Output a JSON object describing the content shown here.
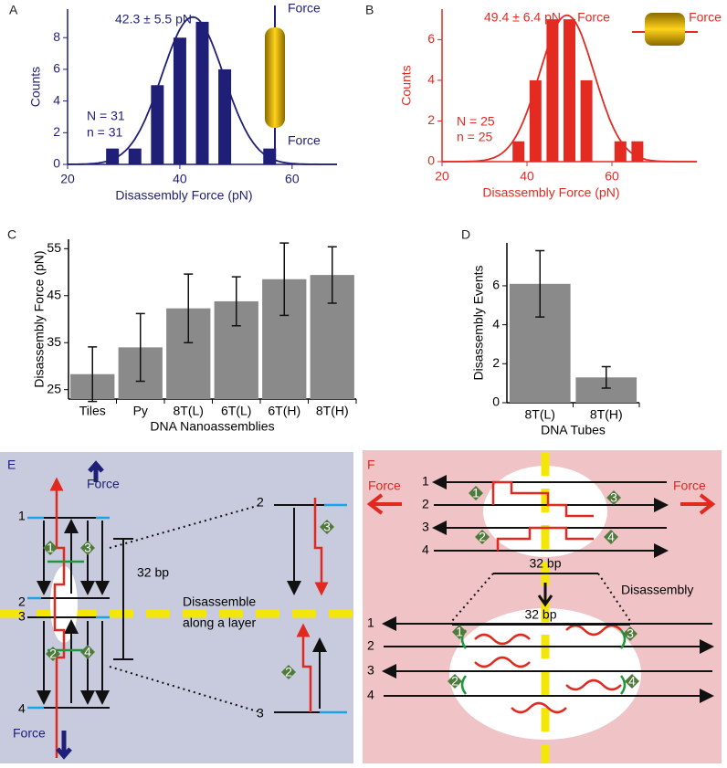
{
  "chart_data": [
    {
      "type": "bar",
      "label": "A",
      "x": [
        28,
        32,
        36,
        40,
        44,
        48,
        56
      ],
      "values": [
        1,
        1,
        5,
        8,
        9,
        6,
        1
      ],
      "color": "#1f1f78",
      "xlabel": "Disassembly Force (pN)",
      "ylabel": "Counts",
      "xlim": [
        20,
        68
      ],
      "xticks": [
        20,
        40,
        60
      ],
      "ylim": [
        0,
        9.8
      ],
      "yticks": [
        0,
        2,
        4,
        6,
        8
      ],
      "fit": {
        "mean": 42.3,
        "sd": 5.5,
        "peak": 9.3
      },
      "annotations": [
        "42.3 ± 5.5 pN",
        "N = 31",
        "n = 31",
        "Force",
        "Force"
      ]
    },
    {
      "type": "bar",
      "label": "B",
      "x": [
        38,
        42,
        46,
        50,
        54,
        62,
        66
      ],
      "values": [
        1,
        4,
        7,
        7,
        4,
        1,
        1
      ],
      "color": "#e32b22",
      "xlabel": "Disassembly Force (pN)",
      "ylabel": "Counts",
      "xlim": [
        20,
        80
      ],
      "xticks": [
        20,
        40,
        60
      ],
      "ylim": [
        0,
        7.5
      ],
      "yticks": [
        0,
        2,
        4,
        6
      ],
      "fit": {
        "mean": 49.4,
        "sd": 6.4,
        "peak": 7.2
      },
      "annotations": [
        "49.4 ± 6.4 pN",
        "N = 25",
        "n = 25",
        "Force",
        "Force"
      ]
    },
    {
      "type": "bar",
      "label": "C",
      "categories": [
        "Tiles",
        "Py",
        "8T(L)",
        "6T(L)",
        "6T(H)",
        "8T(H)"
      ],
      "values": [
        28.3,
        34,
        42.3,
        43.8,
        48.5,
        49.4
      ],
      "errors": [
        5.8,
        7.2,
        7.3,
        5.2,
        7.7,
        6
      ],
      "color": "#8a8a8a",
      "xlabel": "DNA Nanoassemblies",
      "ylabel": "Disassembly Force (pN)",
      "ylim": [
        23,
        57
      ],
      "yticks": [
        25,
        35,
        45,
        55
      ]
    },
    {
      "type": "bar",
      "label": "D",
      "categories": [
        "8T(L)",
        "8T(H)"
      ],
      "values": [
        6.1,
        1.3
      ],
      "errors": [
        1.7,
        0.55
      ],
      "color": "#8a8a8a",
      "xlabel": "DNA Tubes",
      "ylabel": "Disassembly Events",
      "ylim": [
        0,
        8.2
      ],
      "yticks": [
        0,
        2,
        4,
        6
      ]
    }
  ],
  "panel_e": {
    "label": "E",
    "force_top": "Force",
    "force_bottom": "Force",
    "strands": [
      "1",
      "2",
      "3",
      "4"
    ],
    "junctions": [
      "1",
      "3",
      "2",
      "4"
    ],
    "spacing": "32 bp",
    "caption": [
      "Disassemble",
      "along a layer"
    ],
    "zoom_strands": [
      "2",
      "3"
    ],
    "zoom_junctions": [
      "3",
      "2"
    ]
  },
  "panel_f": {
    "label": "F",
    "force_left": "Force",
    "force_right": "Force",
    "strands_top": [
      "1",
      "2",
      "3",
      "4"
    ],
    "junctions_top": [
      "1",
      "3",
      "2",
      "4"
    ],
    "spacing_top": "32 bp",
    "caption": "Disassembly",
    "spacing_bottom": "32 bp",
    "strands_bottom": [
      "1",
      "2",
      "3",
      "4"
    ],
    "junctions_bottom": [
      "1",
      "3",
      "2",
      "4"
    ]
  }
}
